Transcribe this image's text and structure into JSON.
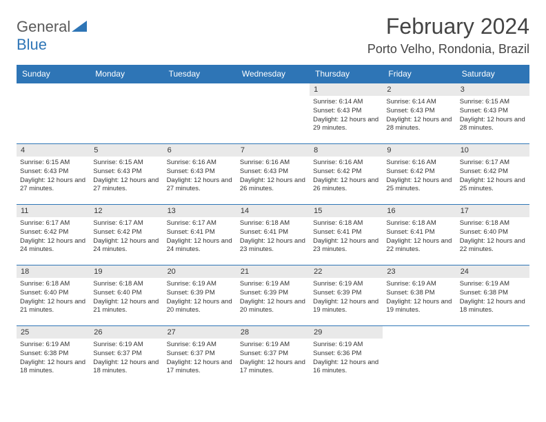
{
  "logo": {
    "part1": "General",
    "part2": "Blue"
  },
  "title": "February 2024",
  "location": "Porto Velho, Rondonia, Brazil",
  "colors": {
    "header_bg": "#2e75b6",
    "header_fg": "#ffffff",
    "daynum_bg": "#e9e9e9",
    "border": "#2e75b6",
    "text": "#333333"
  },
  "daysOfWeek": [
    "Sunday",
    "Monday",
    "Tuesday",
    "Wednesday",
    "Thursday",
    "Friday",
    "Saturday"
  ],
  "weeks": [
    [
      null,
      null,
      null,
      null,
      {
        "n": "1",
        "sr": "6:14 AM",
        "ss": "6:43 PM",
        "dl": "12 hours and 29 minutes."
      },
      {
        "n": "2",
        "sr": "6:14 AM",
        "ss": "6:43 PM",
        "dl": "12 hours and 28 minutes."
      },
      {
        "n": "3",
        "sr": "6:15 AM",
        "ss": "6:43 PM",
        "dl": "12 hours and 28 minutes."
      }
    ],
    [
      {
        "n": "4",
        "sr": "6:15 AM",
        "ss": "6:43 PM",
        "dl": "12 hours and 27 minutes."
      },
      {
        "n": "5",
        "sr": "6:15 AM",
        "ss": "6:43 PM",
        "dl": "12 hours and 27 minutes."
      },
      {
        "n": "6",
        "sr": "6:16 AM",
        "ss": "6:43 PM",
        "dl": "12 hours and 27 minutes."
      },
      {
        "n": "7",
        "sr": "6:16 AM",
        "ss": "6:43 PM",
        "dl": "12 hours and 26 minutes."
      },
      {
        "n": "8",
        "sr": "6:16 AM",
        "ss": "6:42 PM",
        "dl": "12 hours and 26 minutes."
      },
      {
        "n": "9",
        "sr": "6:16 AM",
        "ss": "6:42 PM",
        "dl": "12 hours and 25 minutes."
      },
      {
        "n": "10",
        "sr": "6:17 AM",
        "ss": "6:42 PM",
        "dl": "12 hours and 25 minutes."
      }
    ],
    [
      {
        "n": "11",
        "sr": "6:17 AM",
        "ss": "6:42 PM",
        "dl": "12 hours and 24 minutes."
      },
      {
        "n": "12",
        "sr": "6:17 AM",
        "ss": "6:42 PM",
        "dl": "12 hours and 24 minutes."
      },
      {
        "n": "13",
        "sr": "6:17 AM",
        "ss": "6:41 PM",
        "dl": "12 hours and 24 minutes."
      },
      {
        "n": "14",
        "sr": "6:18 AM",
        "ss": "6:41 PM",
        "dl": "12 hours and 23 minutes."
      },
      {
        "n": "15",
        "sr": "6:18 AM",
        "ss": "6:41 PM",
        "dl": "12 hours and 23 minutes."
      },
      {
        "n": "16",
        "sr": "6:18 AM",
        "ss": "6:41 PM",
        "dl": "12 hours and 22 minutes."
      },
      {
        "n": "17",
        "sr": "6:18 AM",
        "ss": "6:40 PM",
        "dl": "12 hours and 22 minutes."
      }
    ],
    [
      {
        "n": "18",
        "sr": "6:18 AM",
        "ss": "6:40 PM",
        "dl": "12 hours and 21 minutes."
      },
      {
        "n": "19",
        "sr": "6:18 AM",
        "ss": "6:40 PM",
        "dl": "12 hours and 21 minutes."
      },
      {
        "n": "20",
        "sr": "6:19 AM",
        "ss": "6:39 PM",
        "dl": "12 hours and 20 minutes."
      },
      {
        "n": "21",
        "sr": "6:19 AM",
        "ss": "6:39 PM",
        "dl": "12 hours and 20 minutes."
      },
      {
        "n": "22",
        "sr": "6:19 AM",
        "ss": "6:39 PM",
        "dl": "12 hours and 19 minutes."
      },
      {
        "n": "23",
        "sr": "6:19 AM",
        "ss": "6:38 PM",
        "dl": "12 hours and 19 minutes."
      },
      {
        "n": "24",
        "sr": "6:19 AM",
        "ss": "6:38 PM",
        "dl": "12 hours and 18 minutes."
      }
    ],
    [
      {
        "n": "25",
        "sr": "6:19 AM",
        "ss": "6:38 PM",
        "dl": "12 hours and 18 minutes."
      },
      {
        "n": "26",
        "sr": "6:19 AM",
        "ss": "6:37 PM",
        "dl": "12 hours and 18 minutes."
      },
      {
        "n": "27",
        "sr": "6:19 AM",
        "ss": "6:37 PM",
        "dl": "12 hours and 17 minutes."
      },
      {
        "n": "28",
        "sr": "6:19 AM",
        "ss": "6:37 PM",
        "dl": "12 hours and 17 minutes."
      },
      {
        "n": "29",
        "sr": "6:19 AM",
        "ss": "6:36 PM",
        "dl": "12 hours and 16 minutes."
      },
      null,
      null
    ]
  ],
  "labels": {
    "sunrise": "Sunrise:",
    "sunset": "Sunset:",
    "daylight": "Daylight:"
  }
}
